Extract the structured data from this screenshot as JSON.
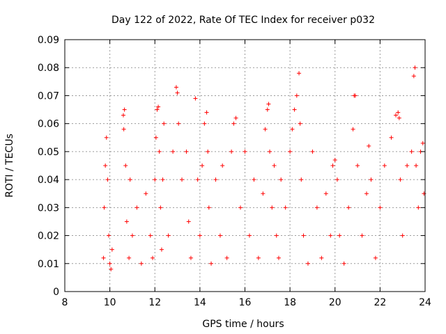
{
  "chart_data": {
    "type": "scatter",
    "title": "Day 122 of 2022, Rate Of TEC Index for receiver p032",
    "xlabel": "GPS time / hours",
    "ylabel": "ROTI / TECUs",
    "xlim": [
      8,
      24
    ],
    "ylim": [
      0,
      0.09
    ],
    "x_ticks": [
      "8",
      "10",
      "12",
      "14",
      "16",
      "18",
      "20",
      "22",
      "24"
    ],
    "y_ticks": [
      "0",
      "0.01",
      "0.02",
      "0.03",
      "0.04",
      "0.05",
      "0.06",
      "0.07",
      "0.08",
      "0.09"
    ],
    "grid": true,
    "marker": "+",
    "color": "#ff0000",
    "series": [
      {
        "x": [
          9.72,
          9.75,
          9.8,
          9.85,
          9.9,
          9.95,
          10.0,
          10.05,
          10.1,
          10.6,
          10.62,
          10.65,
          10.7,
          10.75,
          10.85,
          10.9,
          11.0,
          11.2,
          11.4,
          11.6,
          11.8,
          11.9,
          12.0,
          12.05,
          12.1,
          12.15,
          12.2,
          12.25,
          12.3,
          12.35,
          12.4,
          12.6,
          12.8,
          12.95,
          13.0,
          13.05,
          13.2,
          13.4,
          13.5,
          13.6,
          13.8,
          13.9,
          14.0,
          14.1,
          14.2,
          14.3,
          14.35,
          14.4,
          14.5,
          14.7,
          14.9,
          15.0,
          15.2,
          15.4,
          15.5,
          15.6,
          15.8,
          16.0,
          16.2,
          16.4,
          16.6,
          16.8,
          16.9,
          17.0,
          17.05,
          17.1,
          17.2,
          17.3,
          17.4,
          17.5,
          17.6,
          17.8,
          18.0,
          18.1,
          18.2,
          18.3,
          18.4,
          18.45,
          18.5,
          18.6,
          18.8,
          19.0,
          19.2,
          19.4,
          19.6,
          19.8,
          19.9,
          20.0,
          20.1,
          20.2,
          20.4,
          20.6,
          20.8,
          20.85,
          20.9,
          21.0,
          21.2,
          21.4,
          21.5,
          21.6,
          21.8,
          22.0,
          22.2,
          22.5,
          22.7,
          22.8,
          22.85,
          22.9,
          23.0,
          23.2,
          23.4,
          23.5,
          23.55,
          23.6,
          23.7,
          23.8,
          23.9,
          23.95
        ],
        "y": [
          0.012,
          0.03,
          0.045,
          0.055,
          0.04,
          0.02,
          0.01,
          0.008,
          0.015,
          0.063,
          0.058,
          0.065,
          0.045,
          0.025,
          0.012,
          0.04,
          0.02,
          0.03,
          0.01,
          0.035,
          0.02,
          0.012,
          0.04,
          0.055,
          0.065,
          0.066,
          0.05,
          0.03,
          0.015,
          0.04,
          0.06,
          0.02,
          0.05,
          0.073,
          0.071,
          0.06,
          0.04,
          0.05,
          0.025,
          0.012,
          0.069,
          0.04,
          0.02,
          0.045,
          0.06,
          0.064,
          0.05,
          0.03,
          0.01,
          0.04,
          0.02,
          0.045,
          0.012,
          0.05,
          0.06,
          0.062,
          0.03,
          0.05,
          0.02,
          0.04,
          0.012,
          0.035,
          0.058,
          0.065,
          0.067,
          0.05,
          0.03,
          0.045,
          0.02,
          0.012,
          0.04,
          0.03,
          0.05,
          0.058,
          0.065,
          0.07,
          0.078,
          0.06,
          0.04,
          0.02,
          0.01,
          0.05,
          0.03,
          0.012,
          0.035,
          0.02,
          0.045,
          0.047,
          0.04,
          0.02,
          0.01,
          0.03,
          0.058,
          0.07,
          0.07,
          0.045,
          0.02,
          0.035,
          0.052,
          0.04,
          0.012,
          0.03,
          0.045,
          0.055,
          0.063,
          0.064,
          0.062,
          0.04,
          0.02,
          0.045,
          0.05,
          0.077,
          0.08,
          0.045,
          0.03,
          0.05,
          0.053,
          0.035
        ]
      }
    ]
  }
}
